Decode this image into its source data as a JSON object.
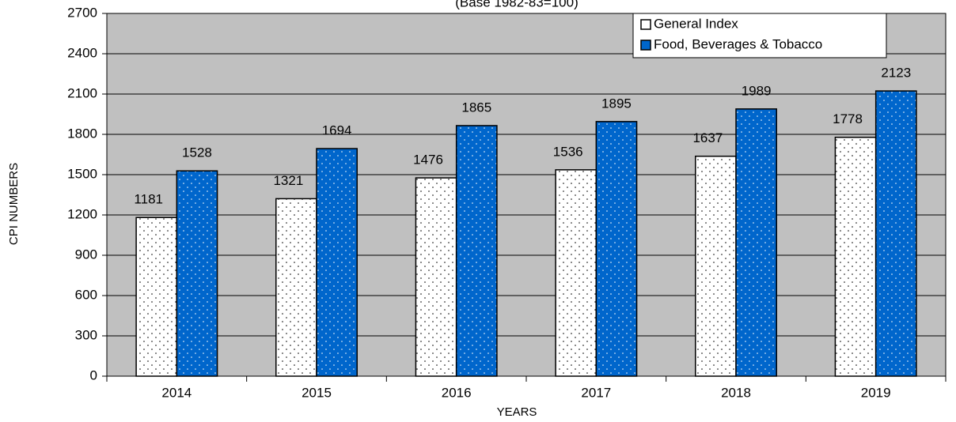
{
  "chart_data": {
    "type": "bar",
    "subtitle": "(Base 1982-83=100)",
    "x_label": "YEARS",
    "y_label": "CPI NUMBERS",
    "categories": [
      "2014",
      "2015",
      "2016",
      "2017",
      "2018",
      "2019"
    ],
    "series": [
      {
        "name": "General Index",
        "color": "#ffffff",
        "values": [
          1181,
          1321,
          1476,
          1536,
          1637,
          1778
        ]
      },
      {
        "name": "Food, Beverages & Tobacco",
        "color": "#0066cc",
        "values": [
          1528,
          1694,
          1865,
          1895,
          1989,
          2123
        ]
      }
    ],
    "ylim": [
      0,
      2700
    ],
    "yticks": [
      0,
      300,
      600,
      900,
      1200,
      1500,
      1800,
      2100,
      2400,
      2700
    ],
    "grid": true,
    "legend": "top-right",
    "background": "#c0c0c0"
  }
}
